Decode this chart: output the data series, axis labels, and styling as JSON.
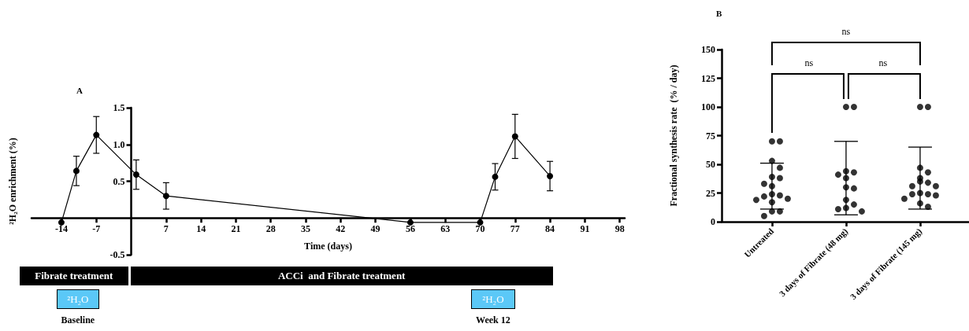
{
  "chart_data": [
    {
      "type": "line",
      "title": "A",
      "xlabel": "Time (days)",
      "ylabel": "²H₂O enrichment (%)",
      "x": [
        -14,
        -11,
        -7,
        1,
        7,
        56,
        70,
        73,
        77,
        84
      ],
      "values": [
        -0.06,
        0.64,
        1.13,
        0.59,
        0.3,
        -0.06,
        -0.06,
        0.56,
        1.11,
        0.57
      ],
      "errors": [
        null,
        0.2,
        0.25,
        0.2,
        0.18,
        null,
        null,
        0.18,
        0.3,
        0.2
      ],
      "color": "#000000",
      "marker": "circle",
      "line_style": "solid",
      "xlim": [
        -20,
        99
      ],
      "xticks": [
        -14,
        -7,
        7,
        14,
        21,
        28,
        35,
        42,
        49,
        56,
        63,
        70,
        77,
        84,
        91,
        98
      ],
      "ylim": [
        -0.5,
        1.5
      ],
      "yticks": [
        -0.5,
        0.5,
        {
          "value": 1,
          "label": "1.0"
        },
        1.5
      ],
      "annotations": [
        "Fibrate treatment",
        "ACCi  and Fibrate treatment",
        "²H₂O",
        "Baseline",
        "²H₂O",
        "Week 12"
      ]
    },
    {
      "type": "scatter",
      "title": "B",
      "ylabel": "Fractional synthesis rate  (% / day)",
      "categories": [
        "Untreated",
        "3 days of Fibrate (48 mg)",
        "3 days of Fibrate (145 mg)"
      ],
      "series": [
        {
          "type": "scatter",
          "marker": "circle",
          "color": "#000000",
          "x": [
            "Untreated",
            "Untreated",
            "Untreated",
            "Untreated",
            "Untreated",
            "Untreated",
            "Untreated",
            "Untreated",
            "Untreated",
            "Untreated",
            "Untreated",
            "Untreated",
            "Untreated",
            "Untreated",
            "Untreated",
            "Untreated",
            "3 days of Fibrate (48 mg)",
            "3 days of Fibrate (48 mg)",
            "3 days of Fibrate (48 mg)",
            "3 days of Fibrate (48 mg)",
            "3 days of Fibrate (48 mg)",
            "3 days of Fibrate (48 mg)",
            "3 days of Fibrate (48 mg)",
            "3 days of Fibrate (48 mg)",
            "3 days of Fibrate (48 mg)",
            "3 days of Fibrate (48 mg)",
            "3 days of Fibrate (48 mg)",
            "3 days of Fibrate (48 mg)",
            "3 days of Fibrate (145 mg)",
            "3 days of Fibrate (145 mg)",
            "3 days of Fibrate (145 mg)",
            "3 days of Fibrate (145 mg)",
            "3 days of Fibrate (145 mg)",
            "3 days of Fibrate (145 mg)",
            "3 days of Fibrate (145 mg)",
            "3 days of Fibrate (145 mg)",
            "3 days of Fibrate (145 mg)",
            "3 days of Fibrate (145 mg)",
            "3 days of Fibrate (145 mg)",
            "3 days of Fibrate (145 mg)",
            "3 days of Fibrate (145 mg)",
            "3 days of Fibrate (145 mg)",
            "3 days of Fibrate (145 mg)"
          ],
          "values": [
            70,
            70,
            53,
            47,
            39,
            38,
            33,
            24,
            23,
            22,
            20,
            19,
            17,
            9,
            9,
            5,
            100,
            100,
            44,
            43,
            41,
            30,
            29,
            19,
            15,
            12,
            11,
            9,
            100,
            100,
            47,
            43,
            35,
            34,
            31,
            31,
            25,
            24,
            24,
            23,
            20,
            16,
            13
          ]
        },
        {
          "type": "scatter",
          "color": "#000000",
          "x": [
            "Untreated",
            "3 days of Fibrate (48 mg)",
            "3 days of Fibrate (145 mg)"
          ],
          "values": [
            31,
            38,
            38
          ],
          "errors": [
            20,
            32,
            27
          ]
        }
      ],
      "ylim": [
        0,
        150
      ],
      "yticks": [
        0,
        25,
        50,
        75,
        100,
        125,
        150
      ],
      "annotations": [
        "ns",
        "ns",
        "ns"
      ]
    }
  ]
}
